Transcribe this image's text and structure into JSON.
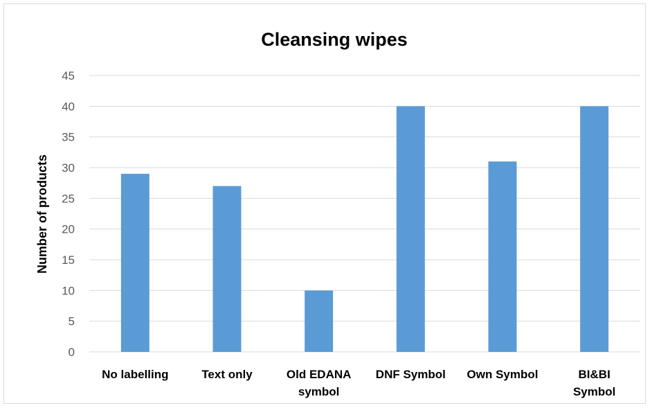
{
  "chart_data": {
    "type": "bar",
    "title": "Cleansing wipes",
    "xlabel": "",
    "ylabel": "Number of products",
    "categories": [
      [
        "No labelling"
      ],
      [
        "Text only"
      ],
      [
        "Old EDANA",
        "symbol"
      ],
      [
        "DNF Symbol"
      ],
      [
        "Own Symbol"
      ],
      [
        "BI&BI",
        "Symbol"
      ]
    ],
    "values": [
      29,
      27,
      10,
      40,
      31,
      40
    ],
    "ylim": [
      0,
      45
    ],
    "yticks": [
      0,
      5,
      10,
      15,
      20,
      25,
      30,
      35,
      40,
      45
    ],
    "grid": true,
    "legend": "none",
    "bar_color": "#5b9bd5",
    "grid_color": "#d9d9d9"
  }
}
